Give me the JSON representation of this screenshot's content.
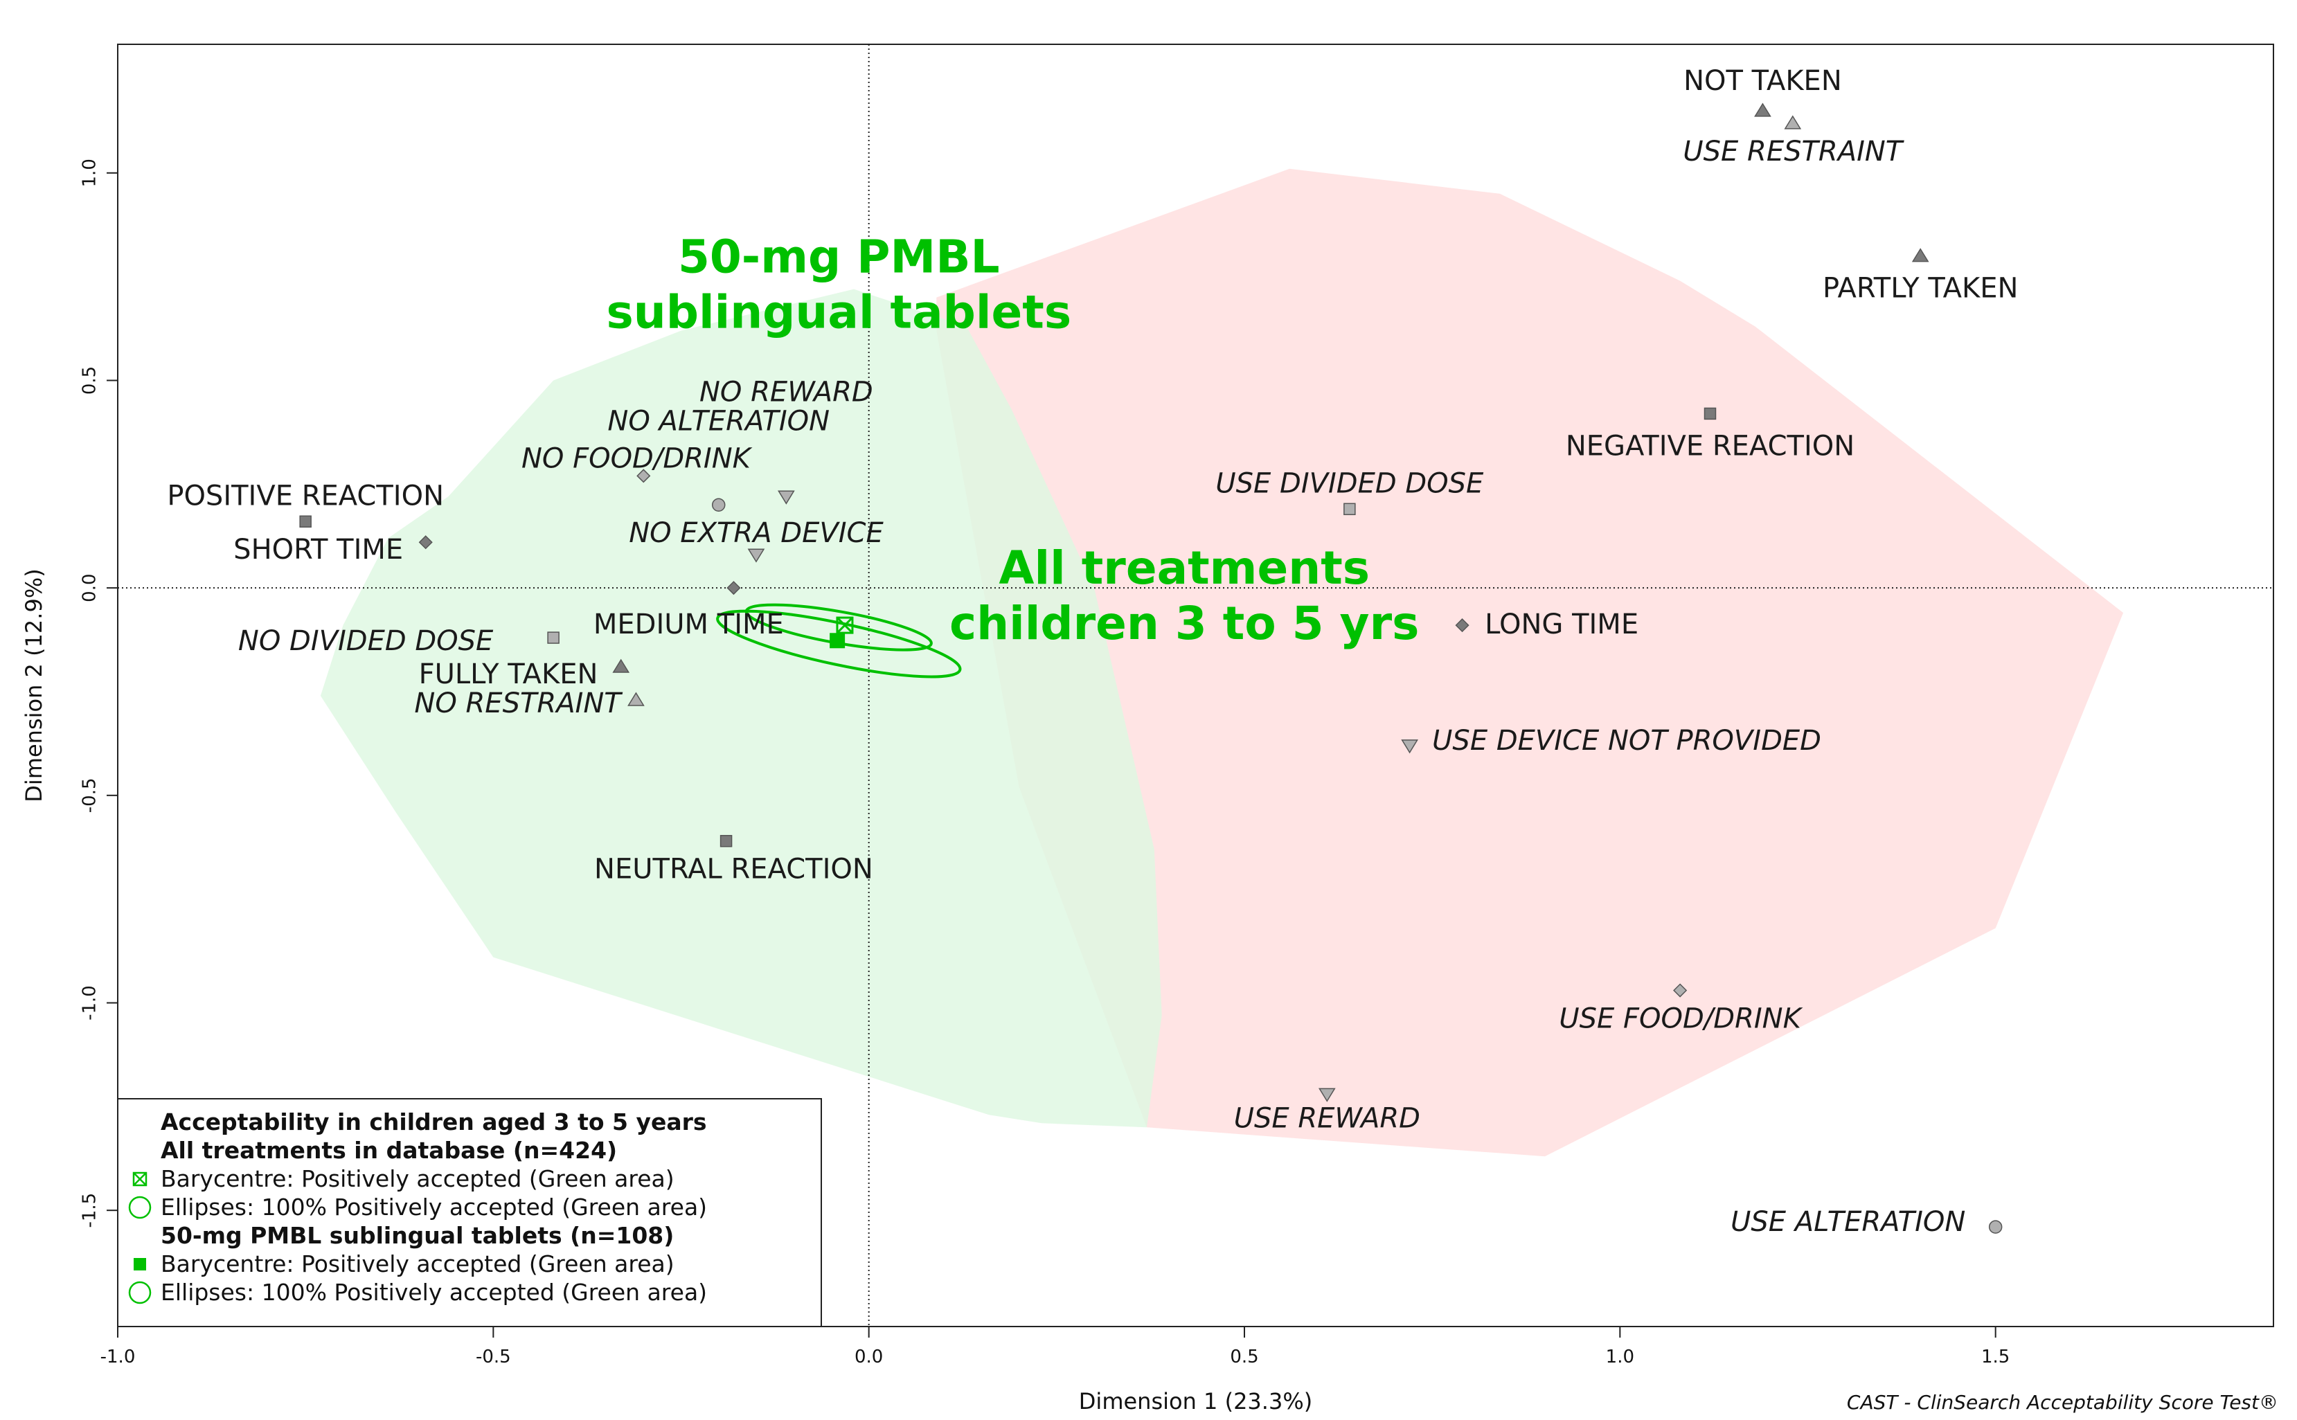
{
  "chart_data": {
    "type": "scatter",
    "title": "",
    "xlabel": "Dimension 1 (23.3%)",
    "ylabel": "Dimension 2 (12.9%)",
    "xlim": [
      -1.0,
      1.87
    ],
    "ylim": [
      -1.78,
      1.31
    ],
    "xticks": [
      {
        "value": -1.0,
        "label": "-1.0"
      },
      {
        "value": -0.5,
        "label": "-0.5"
      },
      {
        "value": 0.0,
        "label": "0.0"
      },
      {
        "value": 0.5,
        "label": "0.5"
      },
      {
        "value": 1.0,
        "label": "1.0"
      },
      {
        "value": 1.5,
        "label": "1.5"
      }
    ],
    "yticks": [
      {
        "value": -1.5,
        "label": "-1.5"
      },
      {
        "value": -1.0,
        "label": "-1.0"
      },
      {
        "value": -0.5,
        "label": "-0.5"
      },
      {
        "value": 0.0,
        "label": "0.0"
      },
      {
        "value": 0.5,
        "label": "0.5"
      },
      {
        "value": 1.0,
        "label": "1.0"
      }
    ],
    "points": [
      {
        "name": "not-taken",
        "label": "NOT TAKEN",
        "x": 1.19,
        "y": 1.15,
        "shape": "triangle",
        "color": "#7a7a7a",
        "italic": false,
        "lx": 1.19,
        "ly": 1.22,
        "anchor": "middle"
      },
      {
        "name": "use-restraint",
        "label": "USE RESTRAINT",
        "x": 1.23,
        "y": 1.12,
        "shape": "triangle",
        "color": "#b0b0b0",
        "italic": true,
        "lx": 1.23,
        "ly": 1.05,
        "anchor": "middle"
      },
      {
        "name": "partly-taken",
        "label": "PARTLY TAKEN",
        "x": 1.4,
        "y": 0.8,
        "shape": "triangle",
        "color": "#7a7a7a",
        "italic": false,
        "lx": 1.4,
        "ly": 0.72,
        "anchor": "middle"
      },
      {
        "name": "negative-reaction",
        "label": "NEGATIVE REACTION",
        "x": 1.12,
        "y": 0.42,
        "shape": "square",
        "color": "#7a7a7a",
        "italic": false,
        "lx": 1.12,
        "ly": 0.34,
        "anchor": "middle"
      },
      {
        "name": "use-divided-dose",
        "label": "USE DIVIDED DOSE",
        "x": 0.64,
        "y": 0.19,
        "shape": "square",
        "color": "#b0b0b0",
        "italic": true,
        "lx": 0.64,
        "ly": 0.25,
        "anchor": "middle"
      },
      {
        "name": "long-time",
        "label": "LONG TIME",
        "x": 0.79,
        "y": -0.09,
        "shape": "diamond",
        "color": "#7a7a7a",
        "italic": false,
        "lx": 0.82,
        "ly": -0.09,
        "anchor": "start"
      },
      {
        "name": "use-device-not-provided",
        "label": "USE DEVICE NOT PROVIDED",
        "x": 0.72,
        "y": -0.38,
        "shape": "triangle-down",
        "color": "#b0b0b0",
        "italic": true,
        "lx": 0.75,
        "ly": -0.37,
        "anchor": "start"
      },
      {
        "name": "use-food-drink",
        "label": "USE FOOD/DRINK",
        "x": 1.08,
        "y": -0.97,
        "shape": "diamond",
        "color": "#b0b0b0",
        "italic": true,
        "lx": 1.08,
        "ly": -1.04,
        "anchor": "middle"
      },
      {
        "name": "use-reward",
        "label": "USE REWARD",
        "x": 0.61,
        "y": -1.22,
        "shape": "triangle-down",
        "color": "#b0b0b0",
        "italic": true,
        "lx": 0.61,
        "ly": -1.28,
        "anchor": "middle"
      },
      {
        "name": "use-alteration",
        "label": "USE ALTERATION",
        "x": 1.5,
        "y": -1.54,
        "shape": "circle",
        "color": "#b0b0b0",
        "italic": true,
        "lx": 1.46,
        "ly": -1.53,
        "anchor": "end"
      },
      {
        "name": "positive-reaction",
        "label": "POSITIVE REACTION",
        "x": -0.75,
        "y": 0.16,
        "shape": "square",
        "color": "#7a7a7a",
        "italic": false,
        "lx": -0.75,
        "ly": 0.22,
        "anchor": "middle"
      },
      {
        "name": "short-time",
        "label": "SHORT TIME",
        "x": -0.59,
        "y": 0.11,
        "shape": "diamond",
        "color": "#7a7a7a",
        "italic": false,
        "lx": -0.62,
        "ly": 0.09,
        "anchor": "end"
      },
      {
        "name": "no-food-drink",
        "label": "NO FOOD/DRINK",
        "x": -0.3,
        "y": 0.27,
        "shape": "diamond",
        "color": "#b0b0b0",
        "italic": true,
        "lx": -0.31,
        "ly": 0.31,
        "anchor": "middle"
      },
      {
        "name": "no-alteration",
        "label": "NO ALTERATION",
        "x": -0.2,
        "y": 0.2,
        "shape": "circle",
        "color": "#b0b0b0",
        "italic": true,
        "lx": -0.2,
        "ly": 0.4,
        "anchor": "middle"
      },
      {
        "name": "no-reward",
        "label": "NO REWARD",
        "x": -0.11,
        "y": 0.22,
        "shape": "triangle-down",
        "color": "#b0b0b0",
        "italic": true,
        "lx": -0.11,
        "ly": 0.47,
        "anchor": "middle"
      },
      {
        "name": "no-extra-device",
        "label": "NO EXTRA DEVICE",
        "x": -0.15,
        "y": 0.08,
        "shape": "triangle-down",
        "color": "#b0b0b0",
        "italic": true,
        "lx": -0.15,
        "ly": 0.13,
        "anchor": "middle"
      },
      {
        "name": "medium-time",
        "label": "MEDIUM TIME",
        "x": -0.18,
        "y": 0.0,
        "shape": "diamond",
        "color": "#7a7a7a",
        "italic": false,
        "lx": -0.24,
        "ly": -0.09,
        "anchor": "middle"
      },
      {
        "name": "no-divided-dose",
        "label": "NO DIVIDED DOSE",
        "x": -0.42,
        "y": -0.12,
        "shape": "square",
        "color": "#b0b0b0",
        "italic": true,
        "lx": -0.5,
        "ly": -0.13,
        "anchor": "end"
      },
      {
        "name": "fully-taken",
        "label": "FULLY TAKEN",
        "x": -0.33,
        "y": -0.19,
        "shape": "triangle",
        "color": "#7a7a7a",
        "italic": false,
        "lx": -0.48,
        "ly": -0.21,
        "anchor": "middle"
      },
      {
        "name": "no-restraint",
        "label": "NO RESTRAINT",
        "x": -0.31,
        "y": -0.27,
        "shape": "triangle",
        "color": "#b0b0b0",
        "italic": true,
        "lx": -0.33,
        "ly": -0.28,
        "anchor": "end"
      },
      {
        "name": "neutral-reaction",
        "label": "NEUTRAL REACTION",
        "x": -0.19,
        "y": -0.61,
        "shape": "square",
        "color": "#7a7a7a",
        "italic": false,
        "lx": -0.18,
        "ly": -0.68,
        "anchor": "middle"
      }
    ],
    "areas": [
      {
        "name": "red-area",
        "color": "#ffe4e4",
        "polygon": [
          [
            0.09,
            0.7
          ],
          [
            0.56,
            1.01
          ],
          [
            0.84,
            0.95
          ],
          [
            1.08,
            0.74
          ],
          [
            1.18,
            0.63
          ],
          [
            1.67,
            -0.06
          ],
          [
            1.5,
            -0.82
          ],
          [
            0.9,
            -1.37
          ],
          [
            0.37,
            -1.3
          ],
          [
            0.2,
            -0.48
          ],
          [
            0.09,
            0.62
          ]
        ]
      },
      {
        "name": "green-area",
        "color": "#def8e2",
        "polygon": [
          [
            -0.64,
            0.12
          ],
          [
            -0.56,
            0.22
          ],
          [
            -0.42,
            0.5
          ],
          [
            -0.25,
            0.62
          ],
          [
            -0.02,
            0.72
          ],
          [
            0.13,
            0.63
          ],
          [
            0.19,
            0.43
          ],
          [
            0.3,
            0.0
          ],
          [
            0.38,
            -0.63
          ],
          [
            0.39,
            -1.03
          ],
          [
            0.37,
            -1.3
          ],
          [
            0.23,
            -1.29
          ],
          [
            0.16,
            -1.27
          ],
          [
            -0.5,
            -0.89
          ],
          [
            -0.63,
            -0.54
          ],
          [
            -0.73,
            -0.26
          ],
          [
            -0.7,
            -0.09
          ],
          [
            -0.64,
            0.12
          ]
        ]
      }
    ],
    "barycentres": [
      {
        "name": "all-treatments-barycentre",
        "x": -0.032,
        "y": -0.09,
        "marker": "square-x",
        "color": "#00c000"
      },
      {
        "name": "pmbl-barycentre",
        "x": -0.042,
        "y": -0.127,
        "marker": "square-filled",
        "color": "#00c000"
      }
    ],
    "ellipses": [
      {
        "name": "all-treatments-ellipse",
        "cx": -0.04,
        "cy": -0.095,
        "rx": 0.125,
        "ry": 0.038,
        "angle": -10,
        "color": "#00c000"
      },
      {
        "name": "pmbl-ellipse",
        "cx": -0.04,
        "cy": -0.135,
        "rx": 0.165,
        "ry": 0.05,
        "angle": -12,
        "color": "#00c000"
      }
    ],
    "annotations": [
      {
        "name": "pmbl-annotation",
        "lines": [
          "50-mg PMBL",
          "sublingual tablets"
        ],
        "x": -0.04,
        "y": 0.76
      },
      {
        "name": "all-treatments-annotation",
        "lines": [
          "All treatments",
          "children 3 to 5 yrs"
        ],
        "x": 0.42,
        "y": 0.01
      }
    ],
    "reference_lines": {
      "x": 0.0,
      "y": 0.0,
      "style": "dotted"
    },
    "legend": {
      "position": "bottom-left",
      "title": "Acceptability in children aged 3 to 5 years",
      "groups": [
        {
          "heading": "All treatments in database (n=424)",
          "items": [
            {
              "marker": "square-x",
              "text": "Barycentre: Positively accepted (Green area)"
            },
            {
              "marker": "circle-open",
              "text": "Ellipses: 100% Positively accepted (Green area)"
            }
          ]
        },
        {
          "heading": "50-mg PMBL sublingual tablets (n=108)",
          "items": [
            {
              "marker": "square-filled",
              "text": "Barycentre: Positively accepted (Green area)"
            },
            {
              "marker": "circle-open",
              "text": "Ellipses: 100% Positively accepted (Green area)"
            }
          ]
        }
      ]
    }
  },
  "footer": "CAST - ClinSearch Acceptability Score Test®",
  "colors": {
    "accent": "#00c000",
    "axis": "#222222"
  }
}
